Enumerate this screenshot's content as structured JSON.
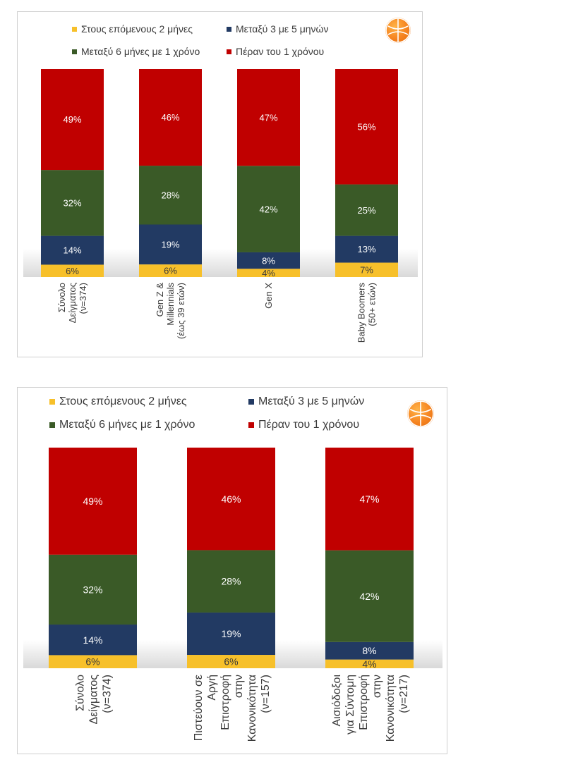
{
  "series": [
    {
      "key": "s1",
      "name": "Στους επόμενους 2 μήνες",
      "color": "#f7c02a",
      "label_color": "#3a3a3a"
    },
    {
      "key": "s2",
      "name": "Μεταξύ 3 με 5 μηνών",
      "color": "#223a63",
      "label_color": "#ffffff"
    },
    {
      "key": "s3",
      "name": "Μεταξύ 6 μήνες με 1 χρόνο",
      "color": "#3a5a27",
      "label_color": "#ffffff"
    },
    {
      "key": "s4",
      "name": "Πέραν του 1 χρόνου",
      "color": "#c00000",
      "label_color": "#ffffff"
    }
  ],
  "chart_1": {
    "legend": {
      "s1": "Στους επόμενους 2 μήνες",
      "s2": "Μεταξύ 3 με 5 μηνών",
      "s3": "Μεταξύ  6 μήνες με 1 χρόνο",
      "s4": "Πέραν του 1 χρόνου"
    }
  },
  "chart_2": {
    "legend": {
      "s1": "Στους επόμενους 2 μήνες",
      "s2": "Μεταξύ 3 με 5 μηνών",
      "s3": "Μεταξύ 6 μήνες με 1 χρόνο",
      "s4": "Πέραν του 1 χρόνου"
    }
  },
  "chart_data": [
    {
      "type": "bar",
      "stacked": true,
      "unit": "%",
      "categories": [
        [
          "Σύνολο",
          "Δείγματος",
          "(ν=374)"
        ],
        [
          "Gen Z &",
          "Millennials",
          "(έως 39 ετών)"
        ],
        [
          "Gen X"
        ],
        [
          "Baby Boomers",
          "(50+ ετών)"
        ]
      ],
      "series": [
        {
          "name": "Στους επόμενους 2 μήνες",
          "values": [
            6,
            6,
            4,
            7
          ]
        },
        {
          "name": "Μεταξύ 3 με 5 μηνών",
          "values": [
            14,
            19,
            8,
            13
          ]
        },
        {
          "name": "Μεταξύ  6 μήνες με 1 χρόνο",
          "values": [
            32,
            28,
            42,
            25
          ]
        },
        {
          "name": "Πέραν του 1 χρόνου",
          "values": [
            49,
            46,
            47,
            56
          ]
        }
      ],
      "legend_position": "top"
    },
    {
      "type": "bar",
      "stacked": true,
      "unit": "%",
      "categories": [
        [
          "Σύνολο",
          "Δείγματος",
          "(ν=374)"
        ],
        [
          "Πιστεύουν σε",
          "Αργή",
          "Επιστροφή",
          "στην",
          "Κανονικότητα",
          "(ν=157)"
        ],
        [
          "Αισιόδοξοι",
          "για Σύντομη",
          "Επιστροφή",
          "στην",
          "Κανονικότητα",
          "(ν=217)"
        ]
      ],
      "series": [
        {
          "name": "Στους επόμενους 2 μήνες",
          "values": [
            6,
            6,
            4
          ]
        },
        {
          "name": "Μεταξύ 3 με 5 μηνών",
          "values": [
            14,
            19,
            8
          ]
        },
        {
          "name": "Μεταξύ 6 μήνες με 1 χρόνο",
          "values": [
            32,
            28,
            42
          ]
        },
        {
          "name": "Πέραν του 1 χρόνου",
          "values": [
            49,
            46,
            47
          ]
        }
      ],
      "legend_position": "top"
    }
  ]
}
